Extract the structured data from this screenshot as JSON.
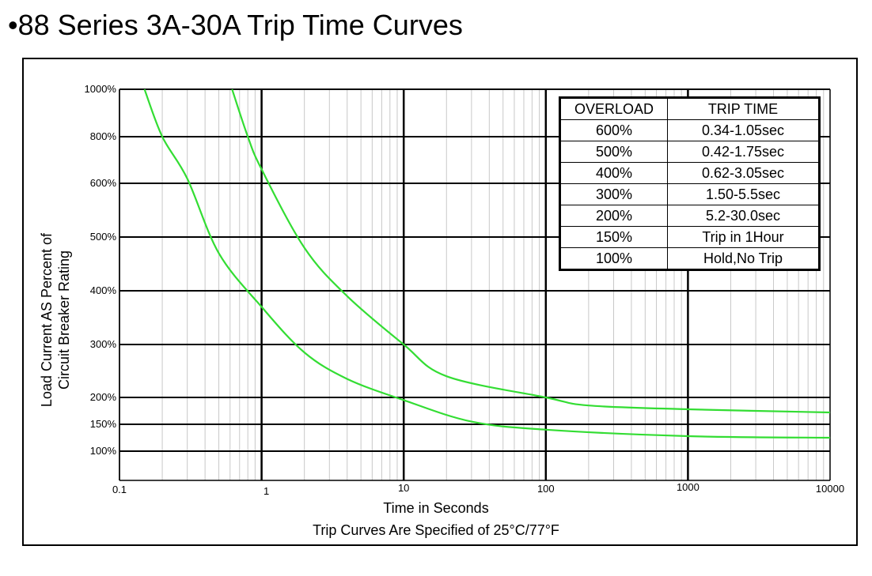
{
  "page": {
    "title": "•88 Series 3A-30A Trip Time Curves"
  },
  "chart_data": {
    "type": "line",
    "title": "88 Series 3A-30A Trip Time Curves",
    "xlabel": "Time in Seconds",
    "xnote": "Trip Curves Are Specified of 25°C/77°F",
    "ylabel": [
      "Load Current AS Percent of",
      "Circuit Breaker Rating"
    ],
    "x_scale": "log",
    "xlim": [
      0.1,
      10000
    ],
    "x_ticks": [
      {
        "value": 0.1,
        "label": "0.1"
      },
      {
        "value": 1,
        "label": "1"
      },
      {
        "value": 10,
        "label": "10"
      },
      {
        "value": 100,
        "label": "100"
      },
      {
        "value": 1000,
        "label": "1000"
      },
      {
        "value": 10000,
        "label": "10000"
      }
    ],
    "y_ticks": [
      {
        "value": 1000,
        "label": "1000%"
      },
      {
        "value": 800,
        "label": "800%"
      },
      {
        "value": 600,
        "label": "600%"
      },
      {
        "value": 500,
        "label": "500%"
      },
      {
        "value": 400,
        "label": "400%"
      },
      {
        "value": 300,
        "label": "300%"
      },
      {
        "value": 200,
        "label": "200%"
      },
      {
        "value": 150,
        "label": "150%"
      },
      {
        "value": 100,
        "label": "100%"
      }
    ],
    "grid": true,
    "curve_color": "#33dd33",
    "series": [
      {
        "points": [
          [
            0.15,
            1000
          ],
          [
            0.2,
            800
          ],
          [
            0.3,
            620
          ],
          [
            0.5,
            470
          ],
          [
            1,
            370
          ],
          [
            2,
            285
          ],
          [
            4,
            235
          ],
          [
            10,
            195
          ],
          [
            30,
            155
          ],
          [
            100,
            140
          ],
          [
            1000,
            128
          ],
          [
            10000,
            125
          ]
        ]
      },
      {
        "points": [
          [
            0.62,
            1000
          ],
          [
            0.8,
            800
          ],
          [
            1,
            660
          ],
          [
            2,
            480
          ],
          [
            4,
            390
          ],
          [
            10,
            300
          ],
          [
            20,
            240
          ],
          [
            100,
            200
          ],
          [
            200,
            185
          ],
          [
            1000,
            178
          ],
          [
            10000,
            172
          ]
        ]
      }
    ],
    "table": {
      "headers": [
        "OVERLOAD",
        "TRIP TIME"
      ],
      "rows": [
        [
          "600%",
          "0.34-1.05sec"
        ],
        [
          "500%",
          "0.42-1.75sec"
        ],
        [
          "400%",
          "0.62-3.05sec"
        ],
        [
          "300%",
          "1.50-5.5sec"
        ],
        [
          "200%",
          "5.2-30.0sec"
        ],
        [
          "150%",
          "Trip in 1Hour"
        ],
        [
          "100%",
          "Hold,No Trip"
        ]
      ]
    }
  }
}
